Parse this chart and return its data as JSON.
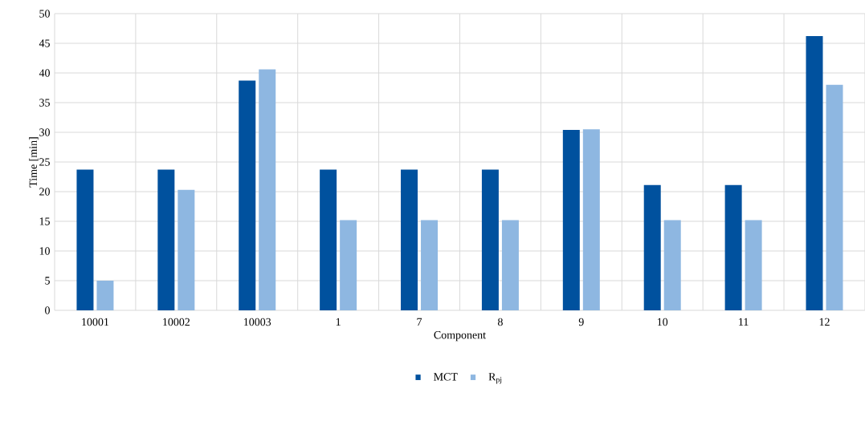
{
  "chart_data": {
    "type": "bar",
    "xlabel": "Component",
    "ylabel": "Time [min]",
    "categories": [
      "10001",
      "10002",
      "10003",
      "1",
      "7",
      "8",
      "9",
      "10",
      "11",
      "12"
    ],
    "series": [
      {
        "name": "MCT",
        "color": "#00519e",
        "values": [
          23.7,
          23.7,
          38.7,
          23.7,
          23.7,
          23.7,
          30.4,
          21.1,
          21.1,
          46.2
        ]
      },
      {
        "name": "R$_{pj}$",
        "color": "#8eb7e1",
        "values": [
          5.0,
          20.3,
          40.6,
          15.2,
          15.2,
          15.2,
          30.5,
          15.2,
          15.2,
          38.0
        ]
      }
    ],
    "ylim": [
      0,
      50
    ],
    "yticks": [
      0,
      5,
      10,
      15,
      20,
      25,
      30,
      35,
      40,
      45,
      50
    ],
    "grid": true,
    "legend": "bottom"
  }
}
